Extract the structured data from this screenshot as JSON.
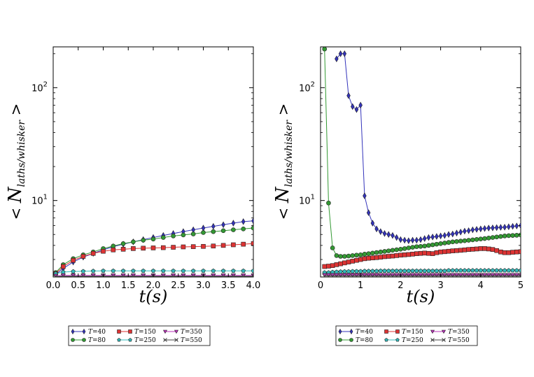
{
  "chart_data": [
    {
      "type": "line",
      "yscale": "log",
      "xlabel": "t(s)",
      "ylabel": "<N_{laths/whisker}>",
      "xlim": [
        0,
        4
      ],
      "ylim": [
        2.1,
        230
      ],
      "xticks": [
        "0.0",
        "0.5",
        "1.0",
        "1.5",
        "2.0",
        "2.5",
        "3.0",
        "3.5",
        "4.0"
      ],
      "xtick_values": [
        0,
        0.5,
        1,
        1.5,
        2,
        2.5,
        3,
        3.5,
        4
      ],
      "yticks": [
        10,
        100
      ],
      "ytick_labels": [
        {
          "base": "10",
          "exp": "1"
        },
        {
          "base": "10",
          "exp": "2"
        }
      ],
      "legend_position": "below",
      "series": [
        {
          "name": "T=40",
          "color": "#3333bb",
          "marker": "diamond",
          "x": [
            0.05,
            0.2,
            0.4,
            0.6,
            0.8,
            1.0,
            1.2,
            1.4,
            1.6,
            1.8,
            2.0,
            2.2,
            2.4,
            2.6,
            2.8,
            3.0,
            3.2,
            3.4,
            3.6,
            3.8,
            4.0
          ],
          "y": [
            2.2,
            2.5,
            2.85,
            3.15,
            3.4,
            3.65,
            3.9,
            4.1,
            4.3,
            4.5,
            4.7,
            4.9,
            5.1,
            5.3,
            5.5,
            5.7,
            5.9,
            6.1,
            6.3,
            6.5,
            6.6
          ]
        },
        {
          "name": "T=80",
          "color": "#339933",
          "marker": "circle",
          "x": [
            0.05,
            0.2,
            0.4,
            0.6,
            0.8,
            1.0,
            1.2,
            1.4,
            1.6,
            1.8,
            2.0,
            2.2,
            2.4,
            2.6,
            2.8,
            3.0,
            3.2,
            3.4,
            3.6,
            3.8,
            4.0
          ],
          "y": [
            2.3,
            2.7,
            3.05,
            3.3,
            3.5,
            3.75,
            3.95,
            4.15,
            4.3,
            4.45,
            4.55,
            4.7,
            4.85,
            4.95,
            5.05,
            5.2,
            5.3,
            5.4,
            5.5,
            5.6,
            5.7
          ]
        },
        {
          "name": "T=150",
          "color": "#dd3333",
          "marker": "square",
          "x": [
            0.05,
            0.2,
            0.4,
            0.6,
            0.8,
            1.0,
            1.2,
            1.4,
            1.6,
            1.8,
            2.0,
            2.2,
            2.4,
            2.6,
            2.8,
            3.0,
            3.2,
            3.4,
            3.6,
            3.8,
            4.0
          ],
          "y": [
            2.25,
            2.6,
            2.95,
            3.2,
            3.4,
            3.55,
            3.65,
            3.7,
            3.75,
            3.78,
            3.8,
            3.82,
            3.85,
            3.88,
            3.9,
            3.92,
            3.95,
            4.0,
            4.05,
            4.1,
            4.15
          ]
        },
        {
          "name": "T=250",
          "color": "#33bbbb",
          "marker": "pentagon",
          "x": [
            0.05,
            0.2,
            0.4,
            0.6,
            0.8,
            1.0,
            1.2,
            1.4,
            1.6,
            1.8,
            2.0,
            2.2,
            2.4,
            2.6,
            2.8,
            3.0,
            3.2,
            3.4,
            3.6,
            3.8,
            4.0
          ],
          "y": [
            2.25,
            2.32,
            2.35,
            2.36,
            2.37,
            2.38,
            2.38,
            2.38,
            2.38,
            2.38,
            2.38,
            2.38,
            2.38,
            2.38,
            2.38,
            2.38,
            2.38,
            2.38,
            2.38,
            2.38,
            2.38
          ]
        },
        {
          "name": "T=350",
          "color": "#bb33bb",
          "marker": "triangle-down",
          "x": [
            0.05,
            0.2,
            0.4,
            0.6,
            0.8,
            1.0,
            1.2,
            1.4,
            1.6,
            1.8,
            2.0,
            2.2,
            2.4,
            2.6,
            2.8,
            3.0,
            3.2,
            3.4,
            3.6,
            3.8,
            4.0
          ],
          "y": [
            2.15,
            2.17,
            2.17,
            2.17,
            2.17,
            2.17,
            2.17,
            2.17,
            2.17,
            2.17,
            2.17,
            2.17,
            2.17,
            2.17,
            2.17,
            2.17,
            2.17,
            2.17,
            2.17,
            2.17,
            2.17
          ]
        },
        {
          "name": "T=550",
          "color": "#444444",
          "marker": "x",
          "x": [
            0.05,
            0.2,
            0.4,
            0.6,
            0.8,
            1.0,
            1.2,
            1.4,
            1.6,
            1.8,
            2.0,
            2.2,
            2.4,
            2.6,
            2.8,
            3.0,
            3.2,
            3.4,
            3.6,
            3.8,
            4.0
          ],
          "y": [
            2.12,
            2.13,
            2.13,
            2.13,
            2.13,
            2.13,
            2.13,
            2.13,
            2.13,
            2.13,
            2.13,
            2.13,
            2.13,
            2.13,
            2.13,
            2.13,
            2.13,
            2.13,
            2.13,
            2.13,
            2.13
          ]
        }
      ]
    },
    {
      "type": "line",
      "yscale": "log",
      "xlabel": "t(s)",
      "ylabel": "<N_{laths/whisker}>",
      "xlim": [
        0,
        5
      ],
      "ylim": [
        2.1,
        230
      ],
      "xticks": [
        "0",
        "1",
        "2",
        "3",
        "4",
        "5"
      ],
      "xtick_values": [
        0,
        1,
        2,
        3,
        4,
        5
      ],
      "yticks": [
        10,
        100
      ],
      "ytick_labels": [
        {
          "base": "10",
          "exp": "1"
        },
        {
          "base": "10",
          "exp": "2"
        }
      ],
      "legend_position": "below",
      "series": [
        {
          "name": "T=40",
          "color": "#3333bb",
          "marker": "diamond",
          "x": [
            0.4,
            0.5,
            0.6,
            0.7,
            0.8,
            0.9,
            1.0,
            1.1,
            1.2,
            1.3,
            1.4,
            1.5,
            1.6,
            1.7,
            1.8,
            1.9,
            2.0,
            2.1,
            2.2,
            2.3,
            2.4,
            2.5,
            2.6,
            2.7,
            2.8,
            2.9,
            3.0,
            3.1,
            3.2,
            3.3,
            3.4,
            3.5,
            3.6,
            3.7,
            3.8,
            3.9,
            4.0,
            4.1,
            4.2,
            4.3,
            4.4,
            4.5,
            4.6,
            4.7,
            4.8,
            4.9,
            5.0
          ],
          "y": [
            180,
            200,
            200,
            85,
            68,
            64,
            70,
            11.0,
            7.8,
            6.3,
            5.6,
            5.3,
            5.1,
            5.0,
            4.9,
            4.7,
            4.5,
            4.45,
            4.4,
            4.45,
            4.45,
            4.5,
            4.6,
            4.7,
            4.75,
            4.8,
            4.85,
            4.9,
            5.0,
            5.05,
            5.15,
            5.25,
            5.35,
            5.4,
            5.5,
            5.55,
            5.6,
            5.65,
            5.7,
            5.72,
            5.75,
            5.78,
            5.8,
            5.85,
            5.9,
            5.95,
            6.0
          ]
        },
        {
          "name": "T=80",
          "color": "#339933",
          "marker": "circle",
          "x": [
            0.1,
            0.2,
            0.3,
            0.4,
            0.5,
            0.6,
            0.7,
            0.8,
            0.9,
            1.0,
            1.1,
            1.2,
            1.3,
            1.4,
            1.5,
            1.6,
            1.7,
            1.8,
            1.9,
            2.0,
            2.1,
            2.2,
            2.3,
            2.4,
            2.5,
            2.6,
            2.7,
            2.8,
            2.9,
            3.0,
            3.1,
            3.2,
            3.3,
            3.4,
            3.5,
            3.6,
            3.7,
            3.8,
            3.9,
            4.0,
            4.1,
            4.2,
            4.3,
            4.4,
            4.5,
            4.6,
            4.7,
            4.8,
            4.9,
            5.0
          ],
          "y": [
            220,
            9.5,
            3.8,
            3.25,
            3.2,
            3.2,
            3.22,
            3.25,
            3.28,
            3.3,
            3.35,
            3.38,
            3.42,
            3.46,
            3.5,
            3.54,
            3.58,
            3.62,
            3.66,
            3.7,
            3.75,
            3.8,
            3.85,
            3.9,
            3.92,
            3.95,
            4.0,
            4.05,
            4.1,
            4.15,
            4.2,
            4.25,
            4.3,
            4.33,
            4.37,
            4.4,
            4.44,
            4.48,
            4.52,
            4.56,
            4.6,
            4.65,
            4.7,
            4.75,
            4.8,
            4.85,
            4.88,
            4.9,
            4.92,
            4.95
          ]
        },
        {
          "name": "T=150",
          "color": "#dd3333",
          "marker": "square",
          "x": [
            0.1,
            0.2,
            0.3,
            0.4,
            0.5,
            0.6,
            0.7,
            0.8,
            0.9,
            1.0,
            1.1,
            1.2,
            1.3,
            1.4,
            1.5,
            1.6,
            1.7,
            1.8,
            1.9,
            2.0,
            2.1,
            2.2,
            2.3,
            2.4,
            2.5,
            2.6,
            2.7,
            2.8,
            2.9,
            3.0,
            3.1,
            3.2,
            3.3,
            3.4,
            3.5,
            3.6,
            3.7,
            3.8,
            3.9,
            4.0,
            4.1,
            4.2,
            4.3,
            4.4,
            4.5,
            4.6,
            4.7,
            4.8,
            4.9,
            5.0
          ],
          "y": [
            2.6,
            2.62,
            2.65,
            2.7,
            2.75,
            2.8,
            2.85,
            2.9,
            2.95,
            3.0,
            3.05,
            3.08,
            3.1,
            3.12,
            3.15,
            3.18,
            3.2,
            3.22,
            3.25,
            3.28,
            3.3,
            3.32,
            3.35,
            3.38,
            3.4,
            3.42,
            3.4,
            3.38,
            3.45,
            3.5,
            3.52,
            3.55,
            3.58,
            3.6,
            3.62,
            3.65,
            3.68,
            3.7,
            3.72,
            3.75,
            3.75,
            3.72,
            3.68,
            3.6,
            3.5,
            3.45,
            3.45,
            3.48,
            3.5,
            3.52
          ]
        },
        {
          "name": "T=250",
          "color": "#33bbbb",
          "marker": "pentagon",
          "x": [
            0.1,
            0.2,
            0.3,
            0.4,
            0.5,
            0.6,
            0.7,
            0.8,
            0.9,
            1.0,
            1.1,
            1.2,
            1.3,
            1.4,
            1.5,
            1.6,
            1.7,
            1.8,
            1.9,
            2.0,
            2.1,
            2.2,
            2.3,
            2.4,
            2.5,
            2.6,
            2.7,
            2.8,
            2.9,
            3.0,
            3.1,
            3.2,
            3.3,
            3.4,
            3.5,
            3.6,
            3.7,
            3.8,
            3.9,
            4.0,
            4.1,
            4.2,
            4.3,
            4.4,
            4.5,
            4.6,
            4.7,
            4.8,
            4.9,
            5.0
          ],
          "y": [
            2.3,
            2.3,
            2.32,
            2.33,
            2.34,
            2.35,
            2.35,
            2.36,
            2.36,
            2.36,
            2.37,
            2.37,
            2.37,
            2.37,
            2.38,
            2.38,
            2.38,
            2.38,
            2.38,
            2.38,
            2.38,
            2.38,
            2.38,
            2.38,
            2.38,
            2.38,
            2.38,
            2.38,
            2.38,
            2.38,
            2.38,
            2.4,
            2.4,
            2.4,
            2.4,
            2.4,
            2.4,
            2.4,
            2.4,
            2.4,
            2.4,
            2.4,
            2.4,
            2.4,
            2.4,
            2.4,
            2.4,
            2.4,
            2.4,
            2.4
          ]
        },
        {
          "name": "T=350",
          "color": "#bb33bb",
          "marker": "triangle-down",
          "x": [
            0.1,
            0.2,
            0.3,
            0.4,
            0.5,
            0.6,
            0.7,
            0.8,
            0.9,
            1.0,
            1.1,
            1.2,
            1.3,
            1.4,
            1.5,
            1.6,
            1.7,
            1.8,
            1.9,
            2.0,
            2.1,
            2.2,
            2.3,
            2.4,
            2.5,
            2.6,
            2.7,
            2.8,
            2.9,
            3.0,
            3.1,
            3.2,
            3.3,
            3.4,
            3.5,
            3.6,
            3.7,
            3.8,
            3.9,
            4.0,
            4.1,
            4.2,
            4.3,
            4.4,
            4.5,
            4.6,
            4.7,
            4.8,
            4.9,
            5.0
          ],
          "y": [
            2.18,
            2.18,
            2.18,
            2.18,
            2.18,
            2.18,
            2.18,
            2.18,
            2.18,
            2.18,
            2.18,
            2.18,
            2.18,
            2.18,
            2.18,
            2.18,
            2.18,
            2.18,
            2.18,
            2.18,
            2.18,
            2.18,
            2.18,
            2.18,
            2.18,
            2.18,
            2.18,
            2.18,
            2.18,
            2.18,
            2.18,
            2.18,
            2.18,
            2.18,
            2.18,
            2.18,
            2.18,
            2.18,
            2.18,
            2.18,
            2.18,
            2.18,
            2.18,
            2.18,
            2.18,
            2.18,
            2.18,
            2.18,
            2.18,
            2.18
          ]
        },
        {
          "name": "T=550",
          "color": "#444444",
          "marker": "x",
          "x": [
            0.1,
            0.2,
            0.3,
            0.4,
            0.5,
            0.6,
            0.7,
            0.8,
            0.9,
            1.0,
            1.1,
            1.2,
            1.3,
            1.4,
            1.5,
            1.6,
            1.7,
            1.8,
            1.9,
            2.0,
            2.1,
            2.2,
            2.3,
            2.4,
            2.5,
            2.6,
            2.7,
            2.8,
            2.9,
            3.0,
            3.1,
            3.2,
            3.3,
            3.4,
            3.5,
            3.6,
            3.7,
            3.8,
            3.9,
            4.0,
            4.1,
            4.2,
            4.3,
            4.4,
            4.5,
            4.6,
            4.7,
            4.8,
            4.9,
            5.0
          ],
          "y": [
            2.14,
            2.14,
            2.14,
            2.14,
            2.14,
            2.14,
            2.14,
            2.14,
            2.14,
            2.14,
            2.14,
            2.14,
            2.14,
            2.14,
            2.14,
            2.14,
            2.14,
            2.14,
            2.14,
            2.14,
            2.14,
            2.14,
            2.14,
            2.14,
            2.14,
            2.14,
            2.14,
            2.14,
            2.14,
            2.14,
            2.14,
            2.14,
            2.14,
            2.14,
            2.14,
            2.14,
            2.14,
            2.14,
            2.14,
            2.14,
            2.14,
            2.14,
            2.14,
            2.14,
            2.14,
            2.14,
            2.14,
            2.14,
            2.14,
            2.14
          ]
        }
      ]
    }
  ],
  "legend_labels": {
    "T=40": {
      "var": "T",
      "eq": "=40"
    },
    "T=80": {
      "var": "T",
      "eq": "=80"
    },
    "T=150": {
      "var": "T",
      "eq": "=150"
    },
    "T=250": {
      "var": "T",
      "eq": "=250"
    },
    "T=350": {
      "var": "T",
      "eq": "=350"
    },
    "T=550": {
      "var": "T",
      "eq": "=550"
    }
  }
}
